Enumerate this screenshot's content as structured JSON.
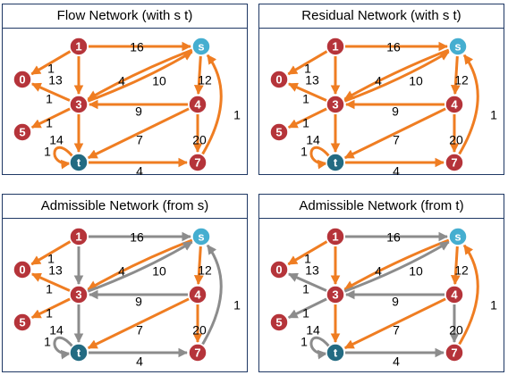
{
  "colors": {
    "active": "#ef7d22",
    "inactive": "#8c8c8c",
    "node_red": "#b5343a",
    "node_sink": "#236b82",
    "node_source": "#45aed0",
    "node_stroke": "#ffffff",
    "border": "#1f3864"
  },
  "nodes": [
    {
      "id": "0",
      "label": "0",
      "color": "node_red"
    },
    {
      "id": "1",
      "label": "1",
      "color": "node_red"
    },
    {
      "id": "s",
      "label": "s",
      "color": "node_source"
    },
    {
      "id": "3",
      "label": "3",
      "color": "node_red"
    },
    {
      "id": "4",
      "label": "4",
      "color": "node_red"
    },
    {
      "id": "5",
      "label": "5",
      "color": "node_red"
    },
    {
      "id": "t",
      "label": "t",
      "color": "node_sink"
    },
    {
      "id": "7",
      "label": "7",
      "color": "node_red"
    }
  ],
  "edges": [
    {
      "id": "e1s",
      "from": "1",
      "to": "s",
      "label": "16"
    },
    {
      "id": "e10",
      "from": "1",
      "to": "0",
      "label": "1"
    },
    {
      "id": "e13",
      "from": "1",
      "to": "3",
      "label": "13"
    },
    {
      "id": "es3a",
      "from": "s",
      "to": "3",
      "label": "4"
    },
    {
      "id": "e3s",
      "from": "3",
      "to": "s",
      "label": "10"
    },
    {
      "id": "es4",
      "from": "s",
      "to": "4",
      "label": "12"
    },
    {
      "id": "e30",
      "from": "3",
      "to": "0",
      "label": "1"
    },
    {
      "id": "e35",
      "from": "3",
      "to": "5",
      "label": "1"
    },
    {
      "id": "e43",
      "from": "4",
      "to": "3",
      "label": "9"
    },
    {
      "id": "e3t",
      "from": "3",
      "to": "t",
      "label": "14"
    },
    {
      "id": "e4t",
      "from": "4",
      "to": "t",
      "label": "7"
    },
    {
      "id": "e47",
      "from": "4",
      "to": "7",
      "label": "20"
    },
    {
      "id": "ett",
      "from": "t",
      "to": "t",
      "label": "1"
    },
    {
      "id": "et7",
      "from": "t",
      "to": "7",
      "label": "4"
    },
    {
      "id": "e7s",
      "from": "7",
      "to": "s",
      "label": "1"
    }
  ],
  "panels": [
    {
      "id": "flow-network",
      "title": "Flow Network (with s t)",
      "inactive": []
    },
    {
      "id": "residual-network",
      "title": "Residual Network (with s t)",
      "inactive": []
    },
    {
      "id": "admissible-network-from-s",
      "title": "Admissible Network (from s)",
      "inactive": [
        "e1s",
        "e13",
        "e3s",
        "e43",
        "e3t",
        "ett",
        "et7",
        "e7s"
      ]
    },
    {
      "id": "admissible-network-from-t",
      "title": "Admissible Network (from t)",
      "inactive": [
        "e1s",
        "e3s",
        "e43",
        "e47",
        "e30",
        "e35",
        "ett",
        "et7"
      ]
    }
  ]
}
